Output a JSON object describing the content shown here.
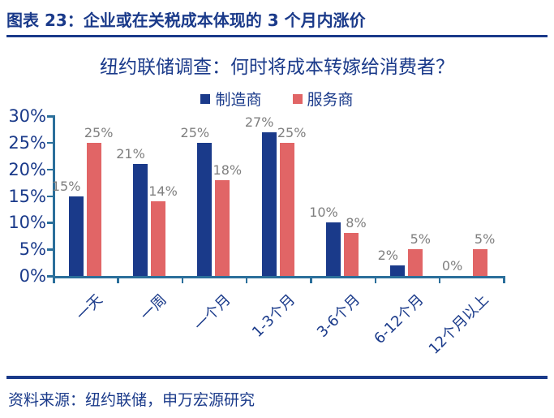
{
  "header": {
    "title": "图表 23：企业或在关税成本体现的 3 个月内涨价"
  },
  "colors": {
    "navy": "#1A3A8A",
    "manufacturer_bar": "#1A3A8A",
    "service_bar": "#E16566",
    "axis": "#2B6F9B",
    "value_label_gray": "#7F7F7F"
  },
  "chart_data": {
    "type": "bar",
    "title": "纽约联储调查：何时将成本转嫁给消费者？",
    "categories": [
      "一天",
      "一周",
      "一个月",
      "1-3个月",
      "3-6个月",
      "6-12个月",
      "12个月以上"
    ],
    "series": [
      {
        "name": "制造商",
        "color": "#1A3A8A",
        "values": [
          15,
          21,
          25,
          27,
          10,
          2,
          0
        ],
        "labels": [
          "15%",
          "21%",
          "25%",
          "27%",
          "10%",
          "2%",
          "0%"
        ]
      },
      {
        "name": "服务商",
        "color": "#E16566",
        "values": [
          25,
          14,
          18,
          25,
          8,
          5,
          5
        ],
        "labels": [
          "25%",
          "14%",
          "18%",
          "25%",
          "8%",
          "5%",
          "5%"
        ]
      }
    ],
    "xlabel": "",
    "ylabel": "",
    "ylim": [
      0,
      30
    ],
    "yticks": [
      "0%",
      "5%",
      "10%",
      "15%",
      "20%",
      "25%",
      "30%"
    ],
    "ytick_values": [
      0,
      5,
      10,
      15,
      20,
      25,
      30
    ],
    "legend_position": "top",
    "grid": false,
    "value_labels_shown": true,
    "category_label_rotation_deg": -45
  },
  "footer": {
    "source": "资料来源：纽约联储，申万宏源研究"
  }
}
